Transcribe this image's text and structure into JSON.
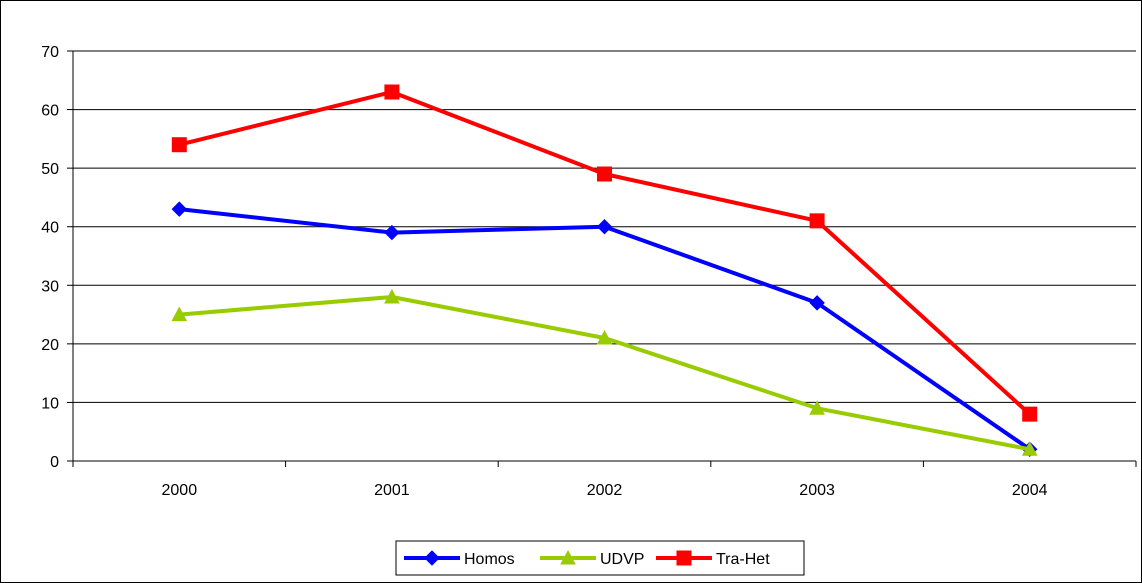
{
  "chart_data": {
    "type": "line",
    "categories": [
      "2000",
      "2001",
      "2002",
      "2003",
      "2004"
    ],
    "series": [
      {
        "name": "Homos",
        "values": [
          43,
          39,
          40,
          27,
          2
        ],
        "color": "#0000ff",
        "marker": "diamond"
      },
      {
        "name": "UDVP",
        "values": [
          25,
          28,
          21,
          9,
          2
        ],
        "color": "#99cc00",
        "marker": "triangle"
      },
      {
        "name": "Tra-Het",
        "values": [
          54,
          63,
          49,
          41,
          8
        ],
        "color": "#ff0000",
        "marker": "square"
      }
    ],
    "ylim": [
      0,
      70
    ],
    "yticks": [
      0,
      10,
      20,
      30,
      40,
      50,
      60,
      70
    ],
    "grid": true,
    "legend_position": "bottom-center"
  }
}
